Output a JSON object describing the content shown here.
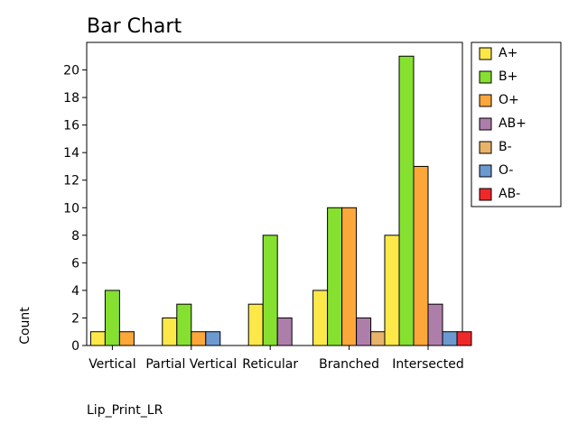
{
  "chart_data": {
    "type": "bar",
    "title": "Bar Chart",
    "xlabel": "Lip_Print_LR",
    "ylabel": "Count",
    "categories": [
      "Vertical",
      "Partial Vertical",
      "Reticular",
      "Branched",
      "Intersected"
    ],
    "ylim": [
      0,
      22
    ],
    "yticks": [
      0,
      2,
      4,
      6,
      8,
      10,
      12,
      14,
      16,
      18,
      20
    ],
    "legend_position": "right",
    "series": [
      {
        "name": "A+",
        "color": "#fde84a",
        "values": [
          1,
          2,
          3,
          4,
          8
        ]
      },
      {
        "name": "B+",
        "color": "#86e030",
        "values": [
          4,
          3,
          8,
          10,
          21
        ]
      },
      {
        "name": "O+",
        "color": "#fca73a",
        "values": [
          1,
          1,
          0,
          10,
          13
        ]
      },
      {
        "name": "AB+",
        "color": "#ae7eab",
        "values": [
          0,
          0,
          2,
          2,
          3
        ]
      },
      {
        "name": "B-",
        "color": "#e7b46a",
        "values": [
          0,
          0,
          0,
          1,
          0
        ]
      },
      {
        "name": "O-",
        "color": "#6b9ad0",
        "values": [
          0,
          1,
          0,
          0,
          1
        ]
      },
      {
        "name": "AB-",
        "color": "#f0282a",
        "values": [
          0,
          0,
          0,
          0,
          1
        ]
      }
    ]
  }
}
